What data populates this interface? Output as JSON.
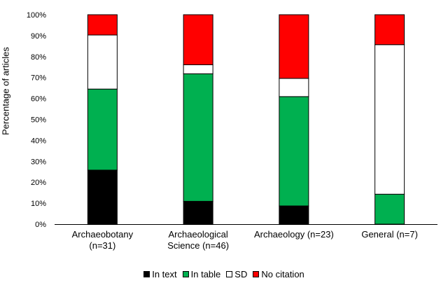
{
  "chart_data": {
    "type": "bar",
    "stacked": true,
    "title": "",
    "xlabel": "",
    "ylabel": "Percentage of articles",
    "ylim": [
      0,
      100
    ],
    "yticks": [
      "0%",
      "10%",
      "20%",
      "30%",
      "40%",
      "50%",
      "60%",
      "70%",
      "80%",
      "90%",
      "100%"
    ],
    "categories": [
      {
        "line1": "Archaeobotany",
        "line2": "(n=31)"
      },
      {
        "line1": "Archaeological",
        "line2": "Science (n=46)"
      },
      {
        "line1": "Archaeology (n=23)",
        "line2": ""
      },
      {
        "line1": "General (n=7)",
        "line2": ""
      }
    ],
    "series": [
      {
        "name": "In text",
        "color": "#000000",
        "values": [
          25.8,
          10.9,
          8.7,
          0
        ]
      },
      {
        "name": "In table",
        "color": "#00b050",
        "values": [
          38.7,
          60.9,
          52.2,
          14.3
        ]
      },
      {
        "name": "SD",
        "color": "#ffffff",
        "values": [
          25.8,
          4.3,
          8.7,
          71.4
        ]
      },
      {
        "name": "No citation",
        "color": "#ff0000",
        "values": [
          9.7,
          23.9,
          30.4,
          14.3
        ]
      }
    ],
    "legend_position": "bottom",
    "grid": false
  }
}
